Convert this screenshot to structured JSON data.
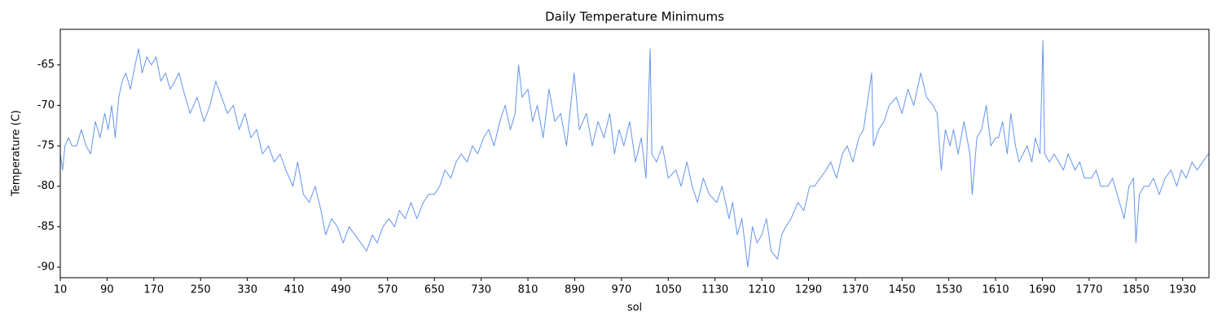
{
  "chart_data": {
    "type": "line",
    "title": "Daily Temperature Minimums",
    "x_label": "sol",
    "y_label": "Temperature (C)",
    "xlim": [
      10,
      1975
    ],
    "ylim": [
      -91.3,
      -60.6
    ],
    "xticks": [
      10,
      90,
      170,
      250,
      330,
      410,
      490,
      570,
      650,
      730,
      810,
      890,
      970,
      1050,
      1130,
      1210,
      1290,
      1370,
      1450,
      1530,
      1610,
      1690,
      1770,
      1850,
      1930
    ],
    "yticks": [
      -90,
      -85,
      -80,
      -75,
      -70,
      -65
    ],
    "grid": false,
    "series": [
      {
        "color": "#6495ed",
        "x": [
          10,
          14,
          18,
          24,
          30,
          38,
          46,
          54,
          62,
          70,
          78,
          86,
          92,
          98,
          104,
          110,
          116,
          122,
          130,
          138,
          144,
          150,
          158,
          166,
          174,
          182,
          190,
          198,
          206,
          213,
          220,
          232,
          244,
          256,
          266,
          276,
          286,
          296,
          306,
          316,
          326,
          336,
          346,
          356,
          366,
          376,
          386,
          396,
          408,
          416,
          426,
          436,
          446,
          456,
          464,
          474,
          484,
          494,
          504,
          514,
          524,
          534,
          544,
          552,
          562,
          572,
          582,
          590,
          600,
          610,
          620,
          631,
          640,
          650,
          659,
          668,
          678,
          687,
          696,
          706,
          715,
          724,
          734,
          743,
          752,
          762,
          771,
          780,
          788,
          794,
          800,
          810,
          818,
          826,
          836,
          846,
          856,
          866,
          876,
          889,
          898,
          910,
          920,
          930,
          940,
          950,
          958,
          966,
          974,
          984,
          994,
          1004,
          1012,
          1019,
          1022,
          1030,
          1040,
          1050,
          1063,
          1072,
          1082,
          1091,
          1100,
          1110,
          1120,
          1133,
          1142,
          1154,
          1160,
          1168,
          1176,
          1186,
          1194,
          1202,
          1210,
          1218,
          1226,
          1237,
          1244,
          1251,
          1260,
          1272,
          1282,
          1292,
          1300,
          1310,
          1320,
          1328,
          1338,
          1348,
          1356,
          1366,
          1376,
          1384,
          1398,
          1401,
          1410,
          1419,
          1428,
          1440,
          1450,
          1460,
          1470,
          1482,
          1492,
          1503,
          1510,
          1517,
          1524,
          1532,
          1538,
          1546,
          1556,
          1566,
          1570,
          1578,
          1586,
          1594,
          1602,
          1610,
          1615,
          1622,
          1630,
          1636,
          1644,
          1650,
          1657,
          1664,
          1672,
          1678,
          1686,
          1691,
          1694,
          1702,
          1710,
          1718,
          1726,
          1734,
          1746,
          1754,
          1762,
          1774,
          1782,
          1790,
          1802,
          1810,
          1818,
          1830,
          1838,
          1846,
          1850,
          1856,
          1864,
          1872,
          1880,
          1890,
          1900,
          1910,
          1920,
          1928,
          1936,
          1946,
          1955,
          1964,
          1974
        ],
        "values": [
          -76,
          -78,
          -75,
          -74,
          -75,
          -75,
          -73,
          -75,
          -76,
          -72,
          -74,
          -71,
          -73,
          -70,
          -74,
          -69,
          -67,
          -66,
          -68,
          -65,
          -63,
          -66,
          -64,
          -65,
          -64,
          -67,
          -66,
          -68,
          -67,
          -66,
          -68,
          -71,
          -69,
          -72,
          -70,
          -67,
          -69,
          -71,
          -70,
          -73,
          -71,
          -74,
          -73,
          -76,
          -75,
          -77,
          -76,
          -78,
          -80,
          -77,
          -81,
          -82,
          -80,
          -83,
          -86,
          -84,
          -85,
          -87,
          -85,
          -86,
          -87,
          -88,
          -86,
          -87,
          -85,
          -84,
          -85,
          -83,
          -84,
          -82,
          -84,
          -82,
          -81,
          -81,
          -80,
          -78,
          -79,
          -77,
          -76,
          -77,
          -75,
          -76,
          -74,
          -73,
          -75,
          -72,
          -70,
          -73,
          -71,
          -65,
          -69,
          -68,
          -72,
          -70,
          -74,
          -68,
          -72,
          -71,
          -75,
          -66,
          -73,
          -71,
          -75,
          -72,
          -74,
          -71,
          -76,
          -73,
          -75,
          -72,
          -77,
          -74,
          -79,
          -63,
          -76,
          -77,
          -75,
          -79,
          -78,
          -80,
          -77,
          -80,
          -82,
          -79,
          -81,
          -82,
          -80,
          -84,
          -82,
          -86,
          -84,
          -90,
          -85,
          -87,
          -86,
          -84,
          -88,
          -89,
          -86,
          -85,
          -84,
          -82,
          -83,
          -80,
          -80,
          -79,
          -78,
          -77,
          -79,
          -76,
          -75,
          -77,
          -74,
          -73,
          -66,
          -75,
          -73,
          -72,
          -70,
          -69,
          -71,
          -68,
          -70,
          -66,
          -69,
          -70,
          -71,
          -78,
          -73,
          -75,
          -73,
          -76,
          -72,
          -76,
          -81,
          -74,
          -73,
          -70,
          -75,
          -74,
          -74,
          -72,
          -76,
          -71,
          -75,
          -77,
          -76,
          -75,
          -77,
          -74,
          -76,
          -62,
          -76,
          -77,
          -76,
          -77,
          -78,
          -76,
          -78,
          -77,
          -79,
          -79,
          -78,
          -80,
          -80,
          -79,
          -81,
          -84,
          -80,
          -79,
          -87,
          -81,
          -80,
          -80,
          -79,
          -81,
          -79,
          -78,
          -80,
          -78,
          -79,
          -77,
          -78,
          -77,
          -76
        ]
      }
    ]
  }
}
